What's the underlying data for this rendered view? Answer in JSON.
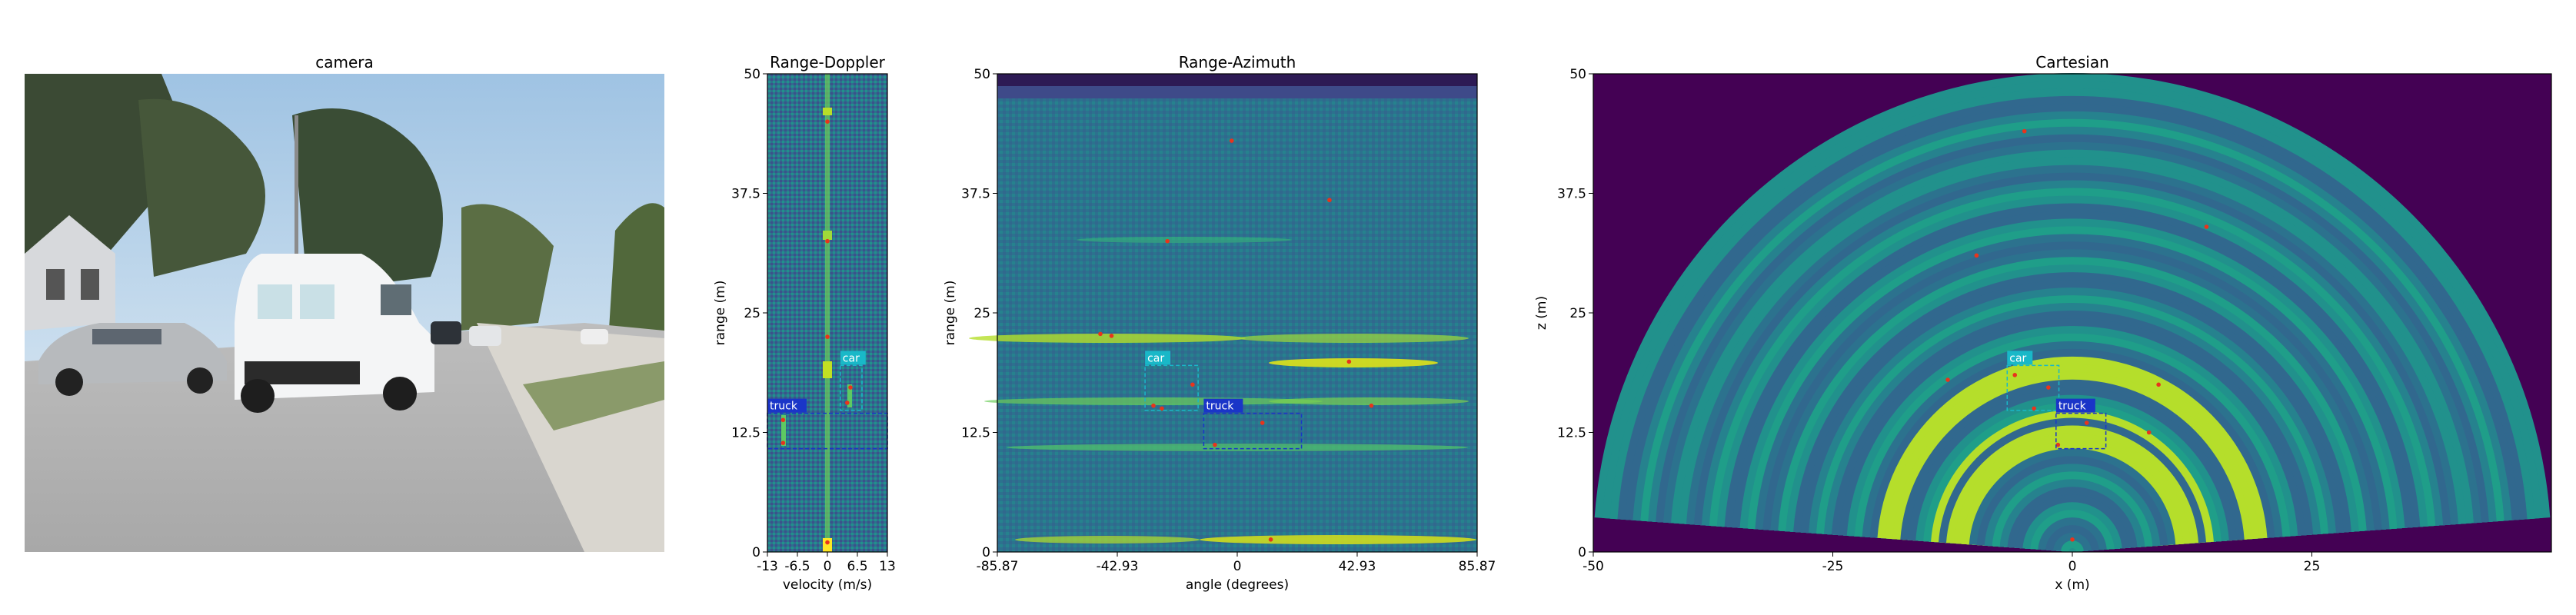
{
  "chart_data": [
    {
      "type": "image",
      "title": "camera",
      "scene": "street view with parked white van (truck) and silver car (car)"
    },
    {
      "type": "heatmap",
      "title": "Range-Doppler",
      "xlabel": "velocity (m/s)",
      "ylabel": "range (m)",
      "xlim": [
        -13,
        13
      ],
      "ylim": [
        0,
        50
      ],
      "xticks": [
        -13,
        -6.5,
        0,
        6.5,
        13
      ],
      "xtick_labels": [
        "-13",
        "-6.5",
        "0",
        "6.5",
        "13"
      ],
      "yticks": [
        0,
        12.5,
        25,
        37.5,
        50
      ],
      "ytick_labels": [
        "0",
        "12.5",
        "25",
        "37.5",
        "50"
      ],
      "boxes": [
        {
          "label": "car",
          "x0": 2.8,
          "x1": 7.5,
          "y0": 14.8,
          "y1": 19.5,
          "color": "#19b8c8"
        },
        {
          "label": "truck",
          "x0": -13,
          "x1": 13,
          "y0": 10.8,
          "y1": 14.5,
          "color": "#1a35c8"
        }
      ],
      "detections": [
        {
          "x": -9.6,
          "y": 13.8
        },
        {
          "x": -9.6,
          "y": 11.4
        },
        {
          "x": 4.3,
          "y": 15.6
        },
        {
          "x": 5.0,
          "y": 17.2
        },
        {
          "x": 0.0,
          "y": 22.5
        },
        {
          "x": 0.0,
          "y": 32.5
        },
        {
          "x": 0.0,
          "y": 45.0
        },
        {
          "x": 0.0,
          "y": 1.0
        }
      ]
    },
    {
      "type": "heatmap",
      "title": "Range-Azimuth",
      "xlabel": "angle (degrees)",
      "ylabel": "range (m)",
      "xlim": [
        -85.87,
        85.87
      ],
      "ylim": [
        0,
        50
      ],
      "xticks": [
        -85.87,
        -42.93,
        0,
        42.93,
        85.87
      ],
      "xtick_labels": [
        "-85.87",
        "-42.93",
        "0",
        "42.93",
        "85.87"
      ],
      "yticks": [
        0,
        12.5,
        25,
        37.5,
        50
      ],
      "ytick_labels": [
        "0",
        "12.5",
        "25",
        "37.5",
        "50"
      ],
      "boxes": [
        {
          "label": "car",
          "x0": -33,
          "x1": -14,
          "y0": 14.8,
          "y1": 19.5,
          "color": "#19b8c8"
        },
        {
          "label": "truck",
          "x0": -12,
          "x1": 23,
          "y0": 10.8,
          "y1": 14.5,
          "color": "#1a35c8"
        }
      ],
      "detections": [
        {
          "x": -49,
          "y": 22.8
        },
        {
          "x": -45,
          "y": 22.6
        },
        {
          "x": -30,
          "y": 15.3
        },
        {
          "x": -27,
          "y": 15.0
        },
        {
          "x": -16,
          "y": 17.5
        },
        {
          "x": -8,
          "y": 11.2
        },
        {
          "x": 9,
          "y": 13.5
        },
        {
          "x": 40,
          "y": 19.9
        },
        {
          "x": 48,
          "y": 15.3
        },
        {
          "x": 33,
          "y": 36.8
        },
        {
          "x": -25,
          "y": 32.5
        },
        {
          "x": 12,
          "y": 1.3
        },
        {
          "x": -2,
          "y": 43.0
        }
      ]
    },
    {
      "type": "heatmap",
      "title": "Cartesian",
      "xlabel": "x (m)",
      "ylabel": "z (m)",
      "xlim": [
        -50,
        50
      ],
      "ylim": [
        0,
        50
      ],
      "xticks": [
        -50,
        -25,
        0,
        25
      ],
      "xtick_labels": [
        "-50",
        "-25",
        "0",
        "25"
      ],
      "yticks": [
        0,
        12.5,
        25,
        37.5,
        50
      ],
      "ytick_labels": [
        "0",
        "12.5",
        "25",
        "37.5",
        "50"
      ],
      "fov_degrees": 85.87,
      "boxes": [
        {
          "label": "car",
          "x0": -6.8,
          "x1": -1.4,
          "y0": 14.8,
          "y1": 19.5,
          "color": "#19b8c8"
        },
        {
          "label": "truck",
          "x0": -1.7,
          "x1": 3.5,
          "y0": 10.8,
          "y1": 14.5,
          "color": "#1a35c8"
        }
      ],
      "detections": [
        {
          "x": -10,
          "y": 31
        },
        {
          "x": -5,
          "y": 44
        },
        {
          "x": -6,
          "y": 18.5
        },
        {
          "x": -4,
          "y": 15
        },
        {
          "x": -2.5,
          "y": 17.2
        },
        {
          "x": -1.5,
          "y": 11.2
        },
        {
          "x": 1.5,
          "y": 13.5
        },
        {
          "x": 9,
          "y": 17.5
        },
        {
          "x": 8,
          "y": 12.5
        },
        {
          "x": -13,
          "y": 18
        },
        {
          "x": 14,
          "y": 34
        },
        {
          "x": 0,
          "y": 1.3
        }
      ]
    }
  ]
}
